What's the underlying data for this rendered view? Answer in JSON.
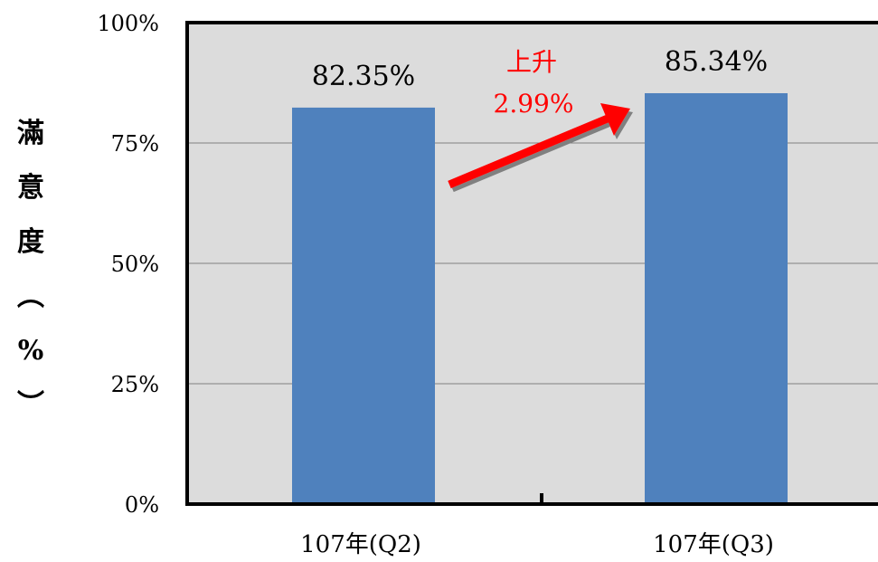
{
  "chart_data": {
    "type": "bar",
    "categories": [
      "107年(Q2)",
      "107年(Q3)"
    ],
    "values": [
      82.35,
      85.34
    ],
    "value_labels": [
      "82.35%",
      "85.34%"
    ],
    "ylabel": "滿意度(%)",
    "ylabel_glyphs": [
      "滿",
      "意",
      "度",
      "︵",
      "%",
      "︶"
    ],
    "ylim": [
      0,
      100
    ],
    "yticks": [
      0,
      25,
      50,
      75,
      100
    ],
    "ytick_labels": [
      "0%",
      "25%",
      "50%",
      "75%",
      "100%"
    ],
    "grid": true,
    "legend": "none",
    "annotation": {
      "line1": "上升",
      "line2": "2.99%",
      "color": "#ff0000"
    },
    "colors": {
      "bar": "#4f81bd",
      "plot_background": "#dcdcdc",
      "gridline": "#808080",
      "axis": "#000000"
    }
  }
}
